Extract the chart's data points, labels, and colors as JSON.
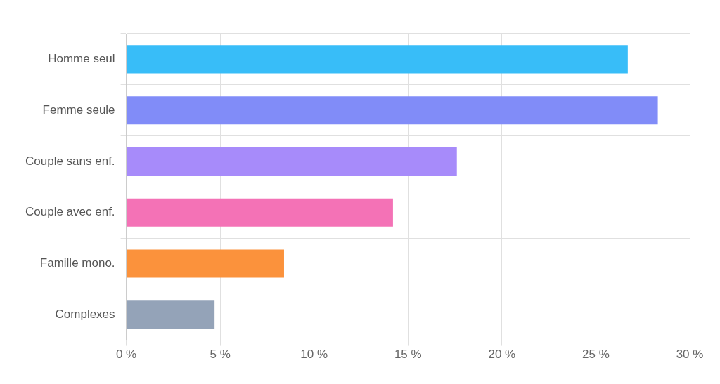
{
  "chart_data": {
    "type": "bar",
    "orientation": "horizontal",
    "categories": [
      "Homme seul",
      "Femme seule",
      "Couple sans enf.",
      "Couple avec enf.",
      "Famille mono.",
      "Complexes"
    ],
    "values": [
      26.7,
      28.3,
      17.6,
      14.2,
      8.4,
      4.7
    ],
    "colors": [
      "#38bdf8",
      "#818cf8",
      "#a78bfa",
      "#f472b6",
      "#fb923c",
      "#94a3b8"
    ],
    "xlim": [
      0,
      30
    ],
    "xticks": [
      {
        "value": 0,
        "label": "0 %"
      },
      {
        "value": 5,
        "label": "5 %"
      },
      {
        "value": 10,
        "label": "10 %"
      },
      {
        "value": 15,
        "label": "15 %"
      },
      {
        "value": 20,
        "label": "20 %"
      },
      {
        "value": 25,
        "label": "25 %"
      },
      {
        "value": 30,
        "label": "30 %"
      }
    ],
    "grid": true,
    "legend": false
  }
}
